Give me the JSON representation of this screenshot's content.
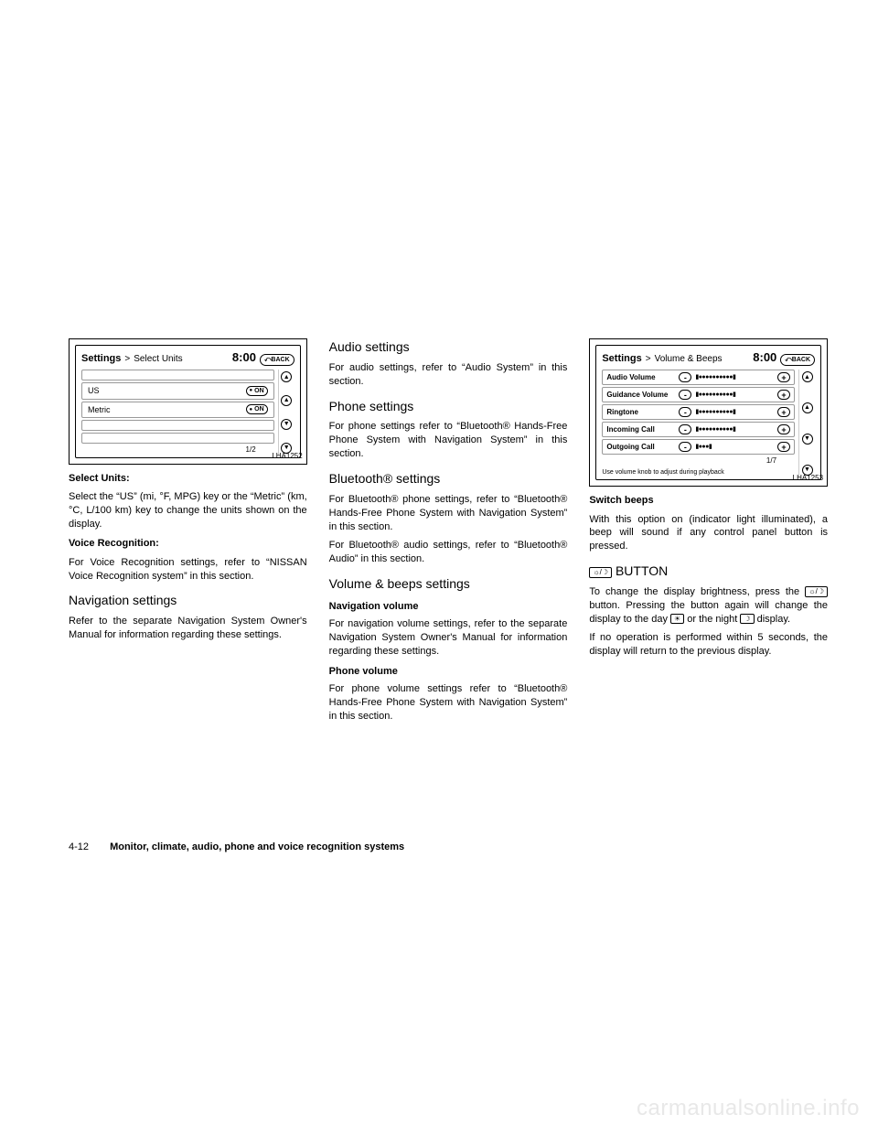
{
  "footer": {
    "pageNum": "4-12",
    "text": "Monitor, climate, audio, phone and voice recognition systems"
  },
  "watermark": "carmanualsonline.info",
  "col1": {
    "screenshot": {
      "id": "LHA1252",
      "breadcrumb1": "Settings",
      "breadcrumb2": "Select Units",
      "time": "8:00",
      "back": "⤺BACK",
      "rows": [
        {
          "label": "US",
          "on": "ON"
        },
        {
          "label": "Metric",
          "on": "ON"
        }
      ],
      "page": "1/2"
    },
    "h1": "Select Units:",
    "p1": "Select the “US” (mi, °F, MPG) key or the “Metric” (km, °C, L/100 km) key to change the units shown on the display.",
    "h2": "Voice Recognition:",
    "p2": "For Voice Recognition settings, refer to “NISSAN Voice Recognition system” in this section.",
    "h3": "Navigation settings",
    "p3": "Refer to the separate Navigation System Owner's Manual for information regarding these settings."
  },
  "col2": {
    "h1": "Audio settings",
    "p1": "For audio settings, refer to “Audio System” in this section.",
    "h2": "Phone settings",
    "p2": "For phone settings refer to “Bluetooth® Hands-Free Phone System with Navigation System” in this section.",
    "h3": "Bluetooth® settings",
    "p3": "For Bluetooth® phone settings, refer to “Bluetooth® Hands-Free Phone System with Navigation System” in this section.",
    "p4": "For Bluetooth® audio settings, refer to “Bluetooth® Audio” in this section.",
    "h4": "Volume & beeps settings",
    "h5": "Navigation volume",
    "p5": "For navigation volume settings, refer to the separate Navigation System Owner's Manual for information regarding these settings.",
    "h6": "Phone volume",
    "p6": "For phone volume settings refer to “Bluetooth® Hands-Free Phone System with Navigation System” in this section."
  },
  "col3": {
    "screenshot": {
      "id": "LHA1253",
      "breadcrumb1": "Settings",
      "breadcrumb2": "Volume & Beeps",
      "time": "8:00",
      "back": "⤺BACK",
      "sliders": [
        {
          "label": "Audio Volume",
          "track": "▮●●●●●●●●●●▮"
        },
        {
          "label": "Guidance Volume",
          "track": "▮●●●●●●●●●●▮"
        },
        {
          "label": "Ringtone",
          "track": "▮●●●●●●●●●●▮"
        },
        {
          "label": "Incoming Call",
          "track": "▮●●●●●●●●●●▮"
        },
        {
          "label": "Outgoing Call",
          "track": "▮●●●▮"
        }
      ],
      "page": "1/7",
      "hint": "Use volume knob to adjust during playback"
    },
    "h1": "Switch beeps",
    "p1": "With this option on (indicator light illuminated), a beep will sound if any control panel button is pressed.",
    "h2_pre": "☼/☽ ",
    "h2": "BUTTON",
    "p2a": "To change the display brightness, press the ",
    "p2b": " button. Pressing the button again will change the display to the day ",
    "p2c": " or the night ",
    "p2d": " display.",
    "icon1": "☼/☽",
    "icon2": "☀",
    "icon3": "☽",
    "p3": "If no operation is performed within 5 seconds, the display will return to the previous display."
  }
}
